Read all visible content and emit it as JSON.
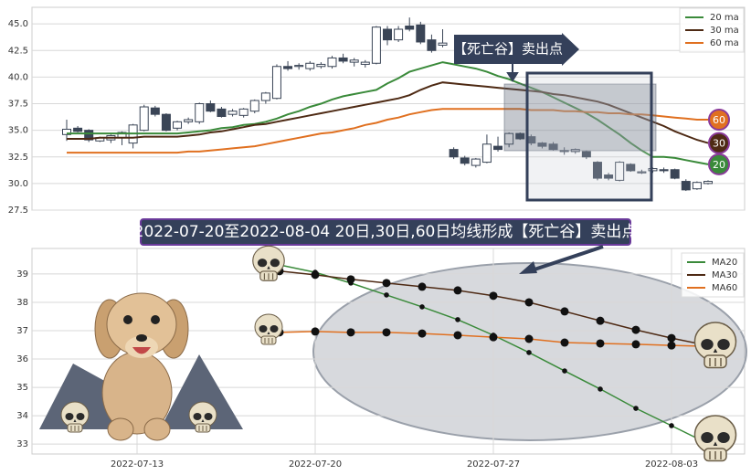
{
  "chart_data": [
    {
      "type": "candlestick",
      "open": [
        34.6,
        35.2,
        35.0,
        34.0,
        34.1,
        34.3,
        33.8,
        35.0,
        37.1,
        36.5,
        35.2,
        35.8,
        35.8,
        37.5,
        37.0,
        36.5,
        36.4,
        36.8,
        37.8,
        38.0,
        41.0,
        41.0,
        40.8,
        41.0,
        41.0,
        41.8,
        41.4,
        41.2,
        41.3,
        44.5,
        43.5,
        44.8,
        44.9,
        43.5,
        43.0,
        33.2,
        32.4,
        31.7,
        32.0,
        33.5,
        33.7,
        34.7,
        34.4,
        33.8,
        33.7,
        33.0,
        33.0,
        33.0,
        32.0,
        30.8,
        30.3,
        31.8,
        31.0,
        31.2,
        31.3,
        31.3,
        30.2,
        29.5,
        30.0
      ],
      "high": [
        36.0,
        35.4,
        35.1,
        34.4,
        34.6,
        34.9,
        35.6,
        37.4,
        37.3,
        36.6,
        35.9,
        36.2,
        37.6,
        37.8,
        37.2,
        37.0,
        37.1,
        37.9,
        38.6,
        41.2,
        41.5,
        41.3,
        41.5,
        41.4,
        42.0,
        42.2,
        41.8,
        41.6,
        44.8,
        44.8,
        44.8,
        45.6,
        45.2,
        44.0,
        44.5,
        33.4,
        32.6,
        32.4,
        34.6,
        34.4,
        34.8,
        34.8,
        34.6,
        33.9,
        33.9,
        33.4,
        33.3,
        33.1,
        32.1,
        31.0,
        32.1,
        31.9,
        31.3,
        31.5,
        31.5,
        31.4,
        30.4,
        30.2,
        30.3
      ],
      "low": [
        34.0,
        34.8,
        33.9,
        33.9,
        33.8,
        33.6,
        33.3,
        34.9,
        36.3,
        34.9,
        35.0,
        35.6,
        35.6,
        36.7,
        36.2,
        36.3,
        36.2,
        36.6,
        37.5,
        37.9,
        40.6,
        40.7,
        40.6,
        40.8,
        40.8,
        41.3,
        41.0,
        40.9,
        41.2,
        43.0,
        43.3,
        44.3,
        43.1,
        42.3,
        42.8,
        32.3,
        31.7,
        31.5,
        31.9,
        33.0,
        33.4,
        34.1,
        33.6,
        33.3,
        33.1,
        32.7,
        32.8,
        32.3,
        30.3,
        30.3,
        30.2,
        31.1,
        30.9,
        31.0,
        31.0,
        30.4,
        29.3,
        29.4,
        29.9
      ],
      "close": [
        35.1,
        34.9,
        34.1,
        34.3,
        34.5,
        34.8,
        35.5,
        37.2,
        36.5,
        35.0,
        35.8,
        36.0,
        37.5,
        36.8,
        36.3,
        36.8,
        37.0,
        37.8,
        38.5,
        41.0,
        40.8,
        41.1,
        41.3,
        41.2,
        41.8,
        41.5,
        41.6,
        41.4,
        44.7,
        43.5,
        44.5,
        44.5,
        43.3,
        42.5,
        43.2,
        32.5,
        31.9,
        32.3,
        33.7,
        33.2,
        34.7,
        34.2,
        33.8,
        33.5,
        33.2,
        33.1,
        33.2,
        32.5,
        30.5,
        30.5,
        32.0,
        31.2,
        31.1,
        31.4,
        31.2,
        30.5,
        29.4,
        30.1,
        30.2
      ],
      "up_color": "#ffffff",
      "down_color": "#3a4556",
      "series": [
        {
          "name": "20 ma",
          "color": "#3a8a3a",
          "badge": "20",
          "values": [
            34.7,
            34.7,
            34.7,
            34.7,
            34.7,
            34.7,
            34.7,
            34.7,
            34.7,
            34.7,
            34.7,
            34.8,
            34.9,
            35.0,
            35.2,
            35.3,
            35.5,
            35.6,
            35.8,
            36.1,
            36.5,
            36.8,
            37.2,
            37.5,
            37.9,
            38.2,
            38.4,
            38.6,
            38.8,
            39.4,
            39.9,
            40.5,
            40.8,
            41.1,
            41.4,
            41.2,
            41.0,
            40.8,
            40.5,
            40.1,
            39.8,
            39.4,
            39.0,
            38.6,
            38.1,
            37.6,
            37.1,
            36.6,
            36.0,
            35.3,
            34.6,
            33.8,
            33.1,
            32.5,
            32.5,
            32.4,
            32.2,
            32.0,
            31.8
          ]
        },
        {
          "name": "30 ma",
          "color": "#4e2a14",
          "badge": "30",
          "values": [
            34.2,
            34.2,
            34.2,
            34.3,
            34.3,
            34.3,
            34.3,
            34.4,
            34.4,
            34.4,
            34.4,
            34.5,
            34.6,
            34.8,
            34.9,
            35.1,
            35.3,
            35.5,
            35.6,
            35.8,
            36.0,
            36.2,
            36.4,
            36.6,
            36.8,
            37.0,
            37.2,
            37.4,
            37.6,
            37.8,
            38.0,
            38.3,
            38.8,
            39.2,
            39.5,
            39.4,
            39.3,
            39.2,
            39.1,
            39.0,
            38.9,
            38.8,
            38.7,
            38.6,
            38.4,
            38.3,
            38.1,
            37.9,
            37.7,
            37.4,
            37.0,
            36.6,
            36.2,
            35.8,
            35.4,
            34.9,
            34.5,
            34.1,
            33.8
          ]
        },
        {
          "name": "60 ma",
          "color": "#e07020",
          "badge": "60",
          "values": [
            32.9,
            32.9,
            32.9,
            32.9,
            32.9,
            32.9,
            32.9,
            32.9,
            32.9,
            32.9,
            32.9,
            33.0,
            33.0,
            33.1,
            33.2,
            33.3,
            33.4,
            33.5,
            33.7,
            33.9,
            34.1,
            34.3,
            34.5,
            34.7,
            34.8,
            35.0,
            35.2,
            35.5,
            35.7,
            36.0,
            36.2,
            36.5,
            36.7,
            36.9,
            37.0,
            37.0,
            37.0,
            37.0,
            37.0,
            37.0,
            37.0,
            37.0,
            36.9,
            36.9,
            36.9,
            36.8,
            36.8,
            36.7,
            36.7,
            36.6,
            36.6,
            36.5,
            36.5,
            36.4,
            36.3,
            36.2,
            36.1,
            36.0,
            36.0
          ]
        }
      ],
      "ylim": [
        27.5,
        46.56
      ],
      "yticks": [
        {
          "value": 27.5,
          "label": "27.5"
        },
        {
          "value": 30,
          "label": "30.0"
        },
        {
          "value": 32.5,
          "label": "32.5"
        },
        {
          "value": 35,
          "label": "35.0"
        },
        {
          "value": 37.5,
          "label": "37.5"
        },
        {
          "value": 40,
          "label": "40.0"
        },
        {
          "value": 42.5,
          "label": "42.5"
        },
        {
          "value": 45,
          "label": "45.0"
        }
      ],
      "grid": true,
      "legend": "upper right",
      "annotation": "【死亡谷】卖出点"
    },
    {
      "type": "line",
      "title": "2022-07-20至2022-08-04 20日,30日,60日均线形成【死亡谷】卖出点",
      "categories": [
        null,
        null,
        null,
        "2022-07-13",
        null,
        null,
        null,
        null,
        "2022-07-20",
        null,
        null,
        null,
        null,
        "2022-07-27",
        null,
        null,
        null,
        null,
        "2022-08-03",
        null
      ],
      "series": [
        {
          "name": "MA20",
          "color": "#3a8a3a",
          "values": [
            null,
            null,
            null,
            null,
            null,
            null,
            null,
            39.32,
            39.06,
            38.68,
            38.26,
            37.84,
            37.39,
            36.84,
            36.23,
            35.58,
            34.94,
            34.26,
            33.65,
            33.03
          ]
        },
        {
          "name": "MA30",
          "color": "#4e2a14",
          "values": [
            null,
            null,
            null,
            null,
            null,
            null,
            null,
            39.1,
            38.97,
            38.81,
            38.68,
            38.55,
            38.42,
            38.23,
            38.0,
            37.68,
            37.35,
            37.03,
            36.74,
            36.48
          ]
        },
        {
          "name": "MA60",
          "color": "#e07020",
          "values": [
            null,
            null,
            null,
            null,
            null,
            null,
            null,
            36.94,
            36.97,
            36.94,
            36.94,
            36.9,
            36.84,
            36.77,
            36.71,
            36.58,
            36.55,
            36.52,
            36.48,
            36.45
          ]
        }
      ],
      "ylim": [
        32.65,
        39.9
      ],
      "yticks": [
        33,
        34,
        35,
        36,
        37,
        38,
        39
      ],
      "grid": true,
      "legend": "upper right"
    }
  ]
}
